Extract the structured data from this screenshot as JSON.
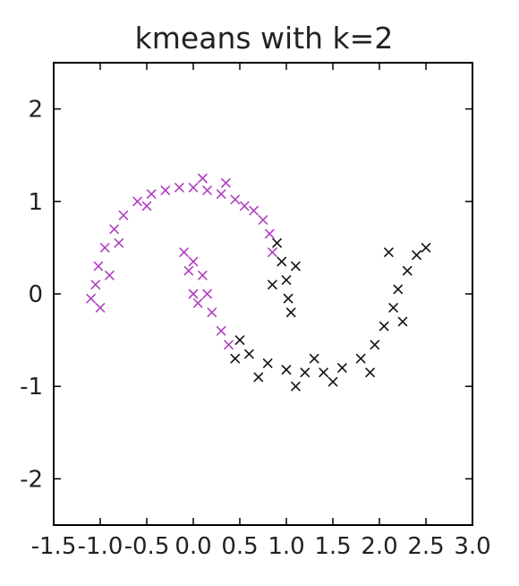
{
  "chart_data": {
    "type": "scatter",
    "title": "kmeans with k=2",
    "xlabel": "",
    "ylabel": "",
    "xlim": [
      -1.5,
      3.0
    ],
    "ylim": [
      -2.5,
      2.5
    ],
    "grid": false,
    "marker": "x",
    "x_ticks": [
      "-1.5",
      "-1.0",
      "-0.5",
      "0.0",
      "0.5",
      "1.0",
      "1.5",
      "2.0",
      "2.5",
      "3.0"
    ],
    "y_ticks": [
      "-2",
      "-1",
      "0",
      "1",
      "2"
    ],
    "x_tick_values": [
      -1.5,
      -1.0,
      -0.5,
      0.0,
      0.5,
      1.0,
      1.5,
      2.0,
      2.5,
      3.0
    ],
    "y_tick_values": [
      -2,
      -1,
      0,
      1,
      2
    ],
    "series": [
      {
        "color": "#b040c0",
        "points": [
          [
            -1.0,
            -0.15
          ],
          [
            -1.05,
            0.1
          ],
          [
            -1.02,
            0.3
          ],
          [
            -0.95,
            0.5
          ],
          [
            -0.85,
            0.7
          ],
          [
            -0.75,
            0.85
          ],
          [
            -0.6,
            1.0
          ],
          [
            -0.45,
            1.08
          ],
          [
            -0.3,
            1.12
          ],
          [
            -0.15,
            1.15
          ],
          [
            0.0,
            1.15
          ],
          [
            0.15,
            1.12
          ],
          [
            0.3,
            1.08
          ],
          [
            0.45,
            1.02
          ],
          [
            0.55,
            0.95
          ],
          [
            0.65,
            0.9
          ],
          [
            0.75,
            0.8
          ],
          [
            0.82,
            0.65
          ],
          [
            0.85,
            0.45
          ],
          [
            -1.1,
            -0.05
          ],
          [
            -0.9,
            0.2
          ],
          [
            -0.8,
            0.55
          ],
          [
            -0.5,
            0.95
          ],
          [
            0.1,
            1.25
          ],
          [
            0.35,
            1.2
          ],
          [
            -0.1,
            0.45
          ],
          [
            0.0,
            0.35
          ],
          [
            0.1,
            0.2
          ],
          [
            0.15,
            0.0
          ],
          [
            0.2,
            -0.2
          ],
          [
            0.3,
            -0.4
          ],
          [
            0.38,
            -0.55
          ],
          [
            0.0,
            0.0
          ],
          [
            0.05,
            -0.1
          ],
          [
            -0.05,
            0.25
          ]
        ]
      },
      {
        "color": "#111111",
        "points": [
          [
            0.9,
            0.55
          ],
          [
            0.95,
            0.35
          ],
          [
            1.0,
            0.15
          ],
          [
            1.02,
            -0.05
          ],
          [
            1.05,
            -0.2
          ],
          [
            0.5,
            -0.5
          ],
          [
            0.6,
            -0.65
          ],
          [
            0.8,
            -0.75
          ],
          [
            1.0,
            -0.82
          ],
          [
            1.2,
            -0.85
          ],
          [
            1.4,
            -0.85
          ],
          [
            1.6,
            -0.8
          ],
          [
            1.8,
            -0.7
          ],
          [
            1.95,
            -0.55
          ],
          [
            2.05,
            -0.35
          ],
          [
            2.15,
            -0.15
          ],
          [
            2.2,
            0.05
          ],
          [
            2.3,
            0.25
          ],
          [
            2.4,
            0.42
          ],
          [
            2.5,
            0.5
          ],
          [
            2.1,
            0.45
          ],
          [
            0.45,
            -0.7
          ],
          [
            0.7,
            -0.9
          ],
          [
            1.1,
            -1.0
          ],
          [
            1.5,
            -0.95
          ],
          [
            1.9,
            -0.85
          ],
          [
            2.25,
            -0.3
          ],
          [
            1.3,
            -0.7
          ],
          [
            0.85,
            0.1
          ],
          [
            1.1,
            0.3
          ]
        ]
      }
    ]
  }
}
